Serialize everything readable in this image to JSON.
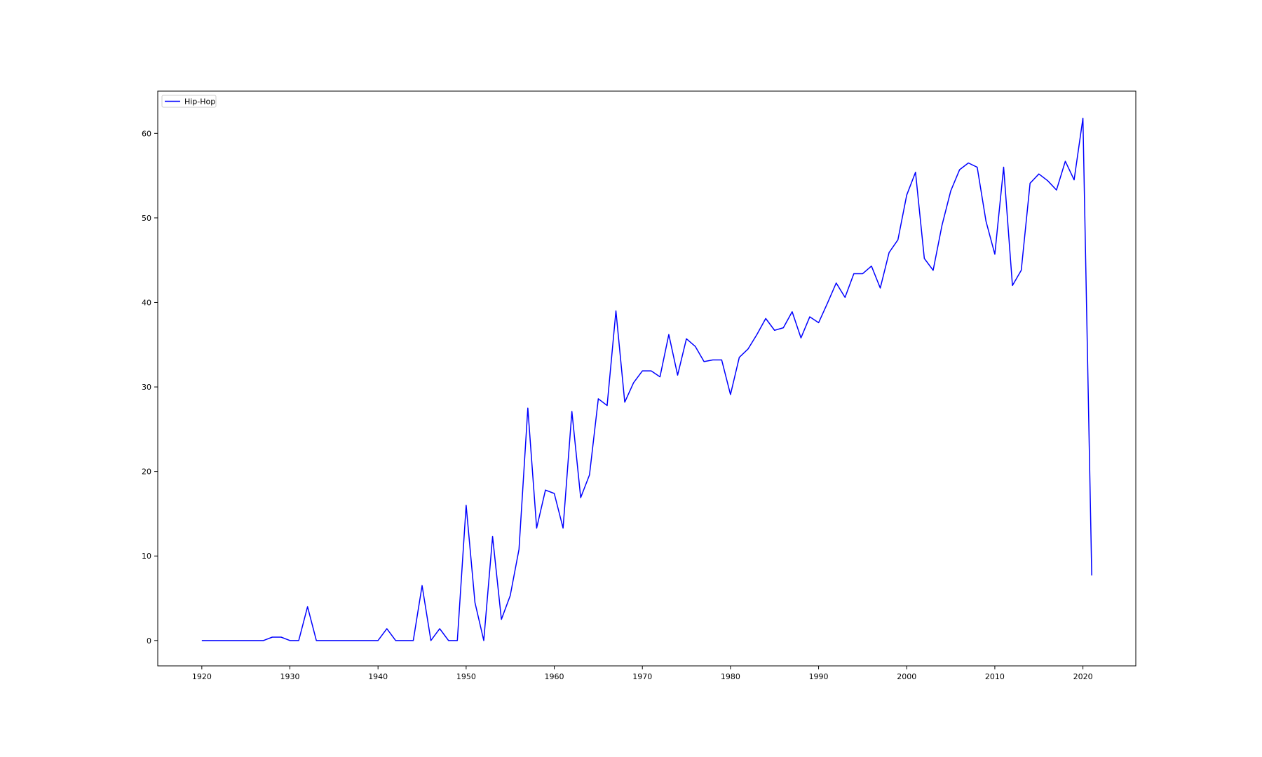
{
  "chart_data": {
    "type": "line",
    "title": "",
    "xlabel": "",
    "ylabel": "",
    "xlim": [
      1915,
      2026
    ],
    "ylim": [
      -3,
      65
    ],
    "xticks": [
      1920,
      1930,
      1940,
      1950,
      1960,
      1970,
      1980,
      1990,
      2000,
      2010,
      2020
    ],
    "yticks": [
      0,
      10,
      20,
      30,
      40,
      50,
      60
    ],
    "grid": false,
    "legend": {
      "position": "top-left",
      "entries": [
        "Hip-Hop"
      ]
    },
    "colors": {
      "series": "#0000ff",
      "axes": "#000000",
      "background": "#ffffff"
    },
    "x": [
      1920,
      1921,
      1922,
      1923,
      1924,
      1925,
      1926,
      1927,
      1928,
      1929,
      1930,
      1931,
      1932,
      1933,
      1934,
      1935,
      1936,
      1937,
      1938,
      1939,
      1940,
      1941,
      1942,
      1943,
      1944,
      1945,
      1946,
      1947,
      1948,
      1949,
      1950,
      1951,
      1952,
      1953,
      1954,
      1955,
      1956,
      1957,
      1958,
      1959,
      1960,
      1961,
      1962,
      1963,
      1964,
      1965,
      1966,
      1967,
      1968,
      1969,
      1970,
      1971,
      1972,
      1973,
      1974,
      1975,
      1976,
      1977,
      1978,
      1979,
      1980,
      1981,
      1982,
      1983,
      1984,
      1985,
      1986,
      1987,
      1988,
      1989,
      1990,
      1991,
      1992,
      1993,
      1994,
      1995,
      1996,
      1997,
      1998,
      1999,
      2000,
      2001,
      2002,
      2003,
      2004,
      2005,
      2006,
      2007,
      2008,
      2009,
      2010,
      2011,
      2012,
      2013,
      2014,
      2015,
      2016,
      2017,
      2018,
      2019,
      2020,
      2021
    ],
    "series": [
      {
        "name": "Hip-Hop",
        "values": [
          0,
          0,
          0,
          0,
          0,
          0,
          0,
          0,
          0.4,
          0.4,
          0,
          0,
          4.0,
          0,
          0,
          0,
          0,
          0,
          0,
          0,
          0,
          1.4,
          0,
          0,
          0,
          6.5,
          0,
          1.4,
          0,
          0,
          16.0,
          4.5,
          0,
          12.3,
          2.5,
          5.3,
          10.8,
          27.5,
          13.3,
          17.8,
          17.4,
          13.3,
          27.1,
          16.9,
          19.6,
          28.6,
          27.8,
          39.0,
          28.2,
          30.5,
          31.9,
          31.9,
          31.2,
          36.2,
          31.4,
          35.7,
          34.8,
          33.0,
          33.2,
          33.2,
          29.1,
          33.5,
          34.5,
          36.2,
          38.1,
          36.7,
          37.0,
          38.9,
          35.8,
          38.3,
          37.6,
          39.9,
          42.3,
          40.6,
          43.4,
          43.4,
          44.3,
          41.7,
          45.9,
          47.4,
          52.7,
          55.4,
          45.2,
          43.8,
          49.1,
          53.2,
          55.7,
          56.5,
          56.0,
          49.6,
          45.7,
          56.0,
          42.0,
          43.8,
          54.1,
          55.2,
          54.4,
          53.3,
          56.7,
          54.5,
          61.8,
          7.7
        ]
      }
    ]
  }
}
